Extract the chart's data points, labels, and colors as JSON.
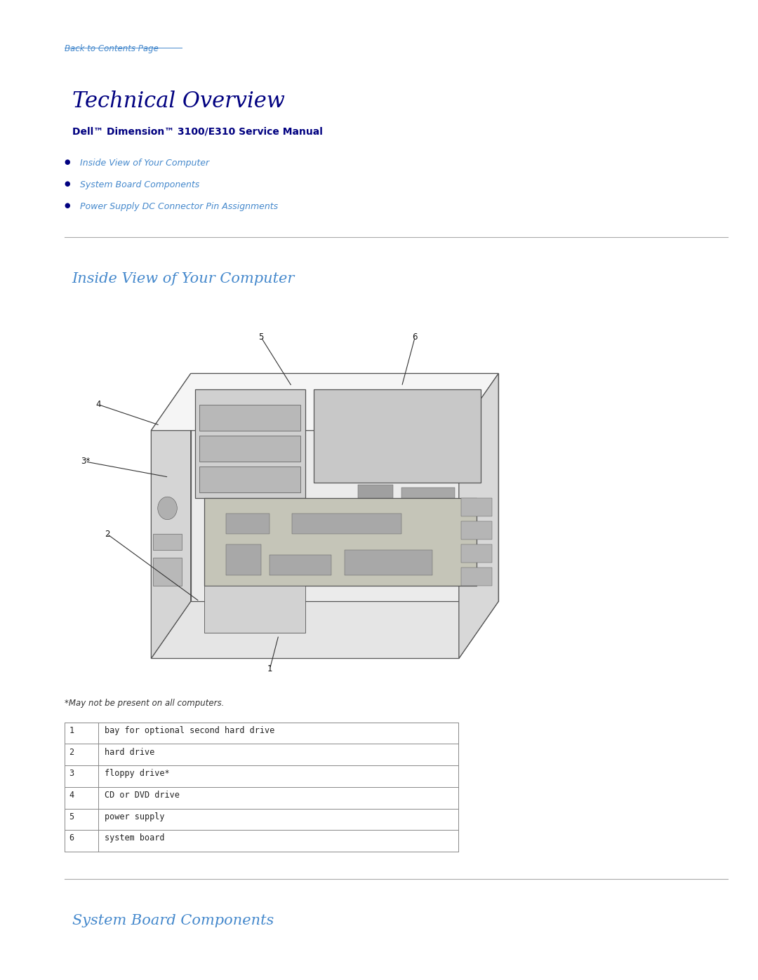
{
  "bg_color": "#ffffff",
  "back_link_text": "Back to Contents Page",
  "back_link_color": "#4488cc",
  "title_text": "Technical Overview",
  "title_color": "#000080",
  "subtitle_text": "Dell™ Dimension™ 3100/E310 Service Manual",
  "subtitle_color": "#000080",
  "nav_items": [
    "Inside View of Your Computer",
    "System Board Components",
    "Power Supply DC Connector Pin Assignments"
  ],
  "nav_color": "#4488cc",
  "nav_bullet_color": "#000080",
  "section1_title": "Inside View of Your Computer",
  "section1_color": "#4488cc",
  "footnote": "*May not be present on all computers.",
  "table_rows": [
    [
      "1",
      "bay for optional second hard drive"
    ],
    [
      "2",
      "hard drive"
    ],
    [
      "3",
      "floppy drive*"
    ],
    [
      "4",
      "CD or DVD drive"
    ],
    [
      "5",
      "power supply"
    ],
    [
      "6",
      "system board"
    ]
  ],
  "section2_title": "System Board Components",
  "section2_color": "#4488cc",
  "divider_color": "#aaaaaa"
}
